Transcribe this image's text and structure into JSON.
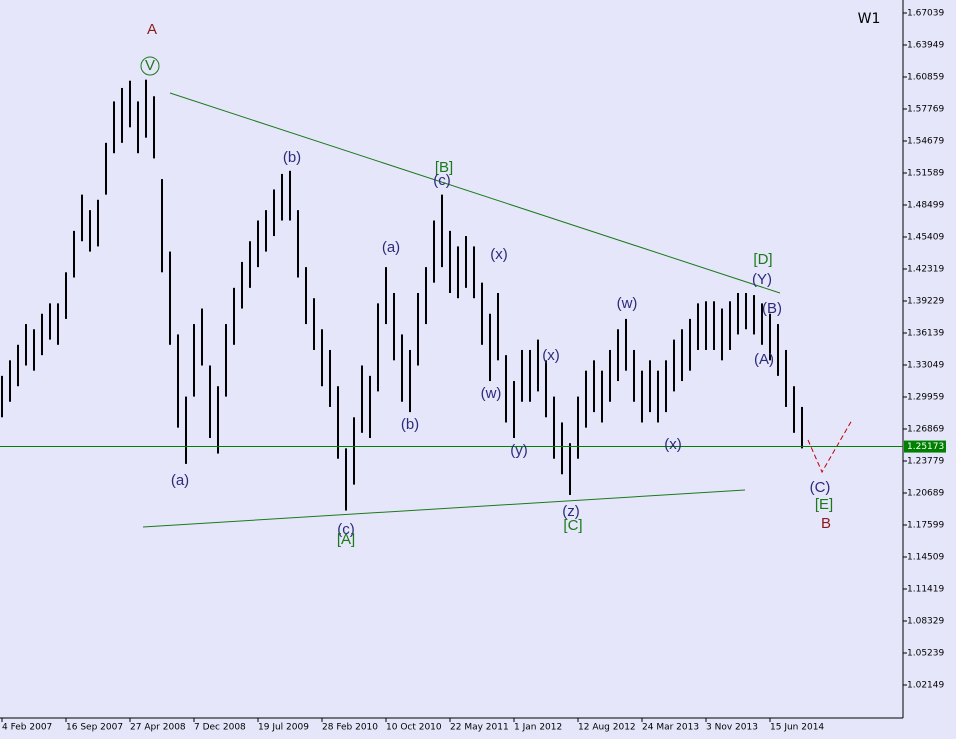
{
  "chart_data": {
    "type": "hilo",
    "timeframe": "W1",
    "categories": [
      "4 Feb 2007",
      null,
      null,
      null,
      null,
      null,
      null,
      null,
      "16 Sep 2007",
      null,
      null,
      null,
      null,
      null,
      null,
      null,
      "27 Apr 2008",
      null,
      null,
      null,
      null,
      null,
      null,
      null,
      "7 Dec 2008",
      null,
      null,
      null,
      null,
      null,
      null,
      null,
      "19 Jul 2009",
      null,
      null,
      null,
      null,
      null,
      null,
      null,
      "28 Feb 2010",
      null,
      null,
      null,
      null,
      null,
      null,
      null,
      "10 Oct 2010",
      null,
      null,
      null,
      null,
      null,
      null,
      null,
      "22 May 2011",
      null,
      null,
      null,
      null,
      null,
      null,
      null,
      "1 Jan 2012",
      null,
      null,
      null,
      null,
      null,
      null,
      null,
      "12 Aug 2012",
      null,
      null,
      null,
      null,
      null,
      null,
      null,
      "24 Mar 2013",
      null,
      null,
      null,
      null,
      null,
      null,
      null,
      "3 Nov 2013",
      null,
      null,
      null,
      null,
      null,
      null,
      null,
      "15 Jun 2014",
      null,
      null,
      null,
      null
    ],
    "high": [
      1.32,
      1.335,
      1.35,
      1.37,
      1.365,
      1.38,
      1.39,
      1.39,
      1.42,
      1.46,
      1.495,
      1.48,
      1.49,
      1.545,
      1.585,
      1.598,
      1.605,
      1.585,
      1.606,
      1.59,
      1.51,
      1.44,
      1.36,
      1.3,
      1.37,
      1.385,
      1.33,
      1.31,
      1.37,
      1.405,
      1.43,
      1.45,
      1.47,
      1.48,
      1.5,
      1.515,
      1.518,
      1.48,
      1.425,
      1.395,
      1.365,
      1.345,
      1.31,
      1.25,
      1.28,
      1.33,
      1.32,
      1.39,
      1.425,
      1.4,
      1.36,
      1.345,
      1.4,
      1.425,
      1.47,
      1.495,
      1.46,
      1.445,
      1.455,
      1.445,
      1.41,
      1.38,
      1.4,
      1.34,
      1.315,
      1.345,
      1.345,
      1.355,
      1.335,
      1.3,
      1.275,
      1.255,
      1.3,
      1.325,
      1.335,
      1.325,
      1.345,
      1.365,
      1.375,
      1.345,
      1.325,
      1.335,
      1.325,
      1.335,
      1.355,
      1.365,
      1.375,
      1.39,
      1.392,
      1.392,
      1.385,
      1.392,
      1.4,
      1.4,
      1.398,
      1.39,
      1.38,
      1.37,
      1.345,
      1.31,
      1.29
    ],
    "low": [
      1.28,
      1.295,
      1.31,
      1.33,
      1.325,
      1.34,
      1.355,
      1.35,
      1.375,
      1.415,
      1.45,
      1.44,
      1.445,
      1.495,
      1.535,
      1.545,
      1.56,
      1.535,
      1.55,
      1.53,
      1.42,
      1.35,
      1.27,
      1.235,
      1.3,
      1.33,
      1.26,
      1.245,
      1.3,
      1.35,
      1.385,
      1.405,
      1.425,
      1.44,
      1.455,
      1.47,
      1.47,
      1.415,
      1.37,
      1.345,
      1.31,
      1.29,
      1.24,
      1.19,
      1.215,
      1.265,
      1.26,
      1.305,
      1.37,
      1.335,
      1.295,
      1.285,
      1.33,
      1.37,
      1.41,
      1.425,
      1.4,
      1.395,
      1.405,
      1.395,
      1.35,
      1.315,
      1.335,
      1.275,
      1.26,
      1.295,
      1.295,
      1.305,
      1.28,
      1.24,
      1.225,
      1.205,
      1.24,
      1.27,
      1.285,
      1.275,
      1.295,
      1.315,
      1.325,
      1.295,
      1.275,
      1.285,
      1.275,
      1.285,
      1.305,
      1.315,
      1.325,
      1.345,
      1.345,
      1.345,
      1.335,
      1.345,
      1.36,
      1.365,
      1.36,
      1.35,
      1.335,
      1.32,
      1.29,
      1.265,
      1.25
    ],
    "color": "#000000",
    "ylim": [
      0.98962,
      1.68294
    ],
    "yticks": [
      1.67039,
      1.63949,
      1.60859,
      1.57769,
      1.54679,
      1.51589,
      1.48499,
      1.45409,
      1.42319,
      1.39229,
      1.36139,
      1.33049,
      1.29959,
      1.26869,
      1.23779,
      1.20689,
      1.17599,
      1.14509,
      1.11419,
      1.08329,
      1.05239,
      1.02149
    ],
    "current_price": 1.25173,
    "current_price_color": "#008000",
    "annotations": [
      {
        "text": "A",
        "color": "#8b1a1a"
      },
      {
        "text": "V",
        "color": "#1a7a1a"
      },
      {
        "text": "(a)",
        "color": "#2b2b7a"
      },
      {
        "text": "(b)",
        "color": "#2b2b7a"
      },
      {
        "text": "(c)",
        "color": "#2b2b7a"
      },
      {
        "text": "[A]",
        "color": "#1a7a1a"
      },
      {
        "text": "(a)",
        "color": "#2b2b7a"
      },
      {
        "text": "(b)",
        "color": "#2b2b7a"
      },
      {
        "text": "[B]",
        "color": "#1a7a1a"
      },
      {
        "text": "(c)",
        "color": "#2b2b7a"
      },
      {
        "text": "(x)",
        "color": "#2b2b7a"
      },
      {
        "text": "(w)",
        "color": "#2b2b7a"
      },
      {
        "text": "(y)",
        "color": "#2b2b7a"
      },
      {
        "text": "(x)",
        "color": "#2b2b7a"
      },
      {
        "text": "(z)",
        "color": "#2b2b7a"
      },
      {
        "text": "[C]",
        "color": "#1a7a1a"
      },
      {
        "text": "(w)",
        "color": "#2b2b7a"
      },
      {
        "text": "(x)",
        "color": "#2b2b7a"
      },
      {
        "text": "[D]",
        "color": "#1a7a1a"
      },
      {
        "text": "(Y)",
        "color": "#2b2b7a"
      },
      {
        "text": "(B)",
        "color": "#2b2b7a"
      },
      {
        "text": "(A)",
        "color": "#2b2b7a"
      },
      {
        "text": "(C)",
        "color": "#2b2b7a"
      },
      {
        "text": "[E]",
        "color": "#1a7a1a"
      },
      {
        "text": "B",
        "color": "#8b1a1a"
      }
    ]
  }
}
